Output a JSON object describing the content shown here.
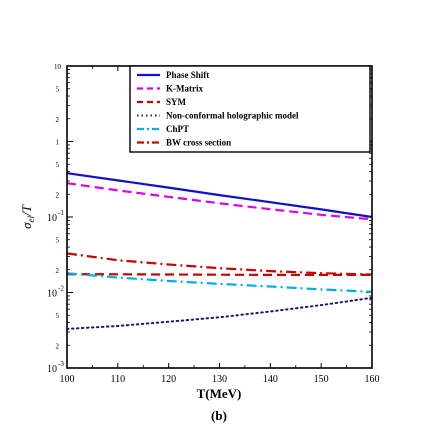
{
  "chart_data": {
    "type": "line",
    "xlabel": "T(MeV)",
    "ylabel": "σ_el/T",
    "panel_label": "(b)",
    "xlim": [
      100,
      160
    ],
    "ylim": [
      0.001,
      10
    ],
    "y_scale": "log",
    "x_ticks": [
      100,
      110,
      120,
      130,
      140,
      150,
      160
    ],
    "legend_position": "top-right",
    "series": [
      {
        "name": "Phase Shift",
        "color": "#1010cc",
        "style": "solid",
        "x": [
          100,
          110,
          120,
          130,
          140,
          150,
          160
        ],
        "y": [
          0.38,
          0.305,
          0.245,
          0.195,
          0.157,
          0.126,
          0.1
        ]
      },
      {
        "name": "K-Matrix",
        "color": "#e000e0",
        "style": "dashed",
        "x": [
          100,
          110,
          120,
          130,
          140,
          150,
          160
        ],
        "y": [
          0.28,
          0.225,
          0.185,
          0.152,
          0.127,
          0.107,
          0.093
        ]
      },
      {
        "name": "SYM",
        "color": "#cc0000",
        "style": "dashed",
        "x": [
          100,
          110,
          120,
          130,
          140,
          150,
          160
        ],
        "y": [
          0.0175,
          0.0174,
          0.0173,
          0.0172,
          0.0171,
          0.0171,
          0.0171
        ]
      },
      {
        "name": "Non-conformal holographic model",
        "color": "#1a1a66",
        "style": "dotted",
        "x": [
          100,
          110,
          120,
          130,
          140,
          150,
          160
        ],
        "y": [
          0.0033,
          0.0036,
          0.0041,
          0.0047,
          0.0056,
          0.0068,
          0.0085
        ]
      },
      {
        "name": "ChPT",
        "color": "#00b0e0",
        "style": "dashdot",
        "x": [
          100,
          110,
          120,
          130,
          140,
          150,
          160
        ],
        "y": [
          0.018,
          0.0158,
          0.0142,
          0.013,
          0.012,
          0.011,
          0.0102
        ]
      },
      {
        "name": "BW cross section",
        "color": "#cc0000",
        "style": "dashdot",
        "x": [
          100,
          110,
          120,
          130,
          140,
          150,
          160
        ],
        "y": [
          0.033,
          0.0268,
          0.0235,
          0.021,
          0.0192,
          0.018,
          0.0173
        ]
      }
    ]
  }
}
